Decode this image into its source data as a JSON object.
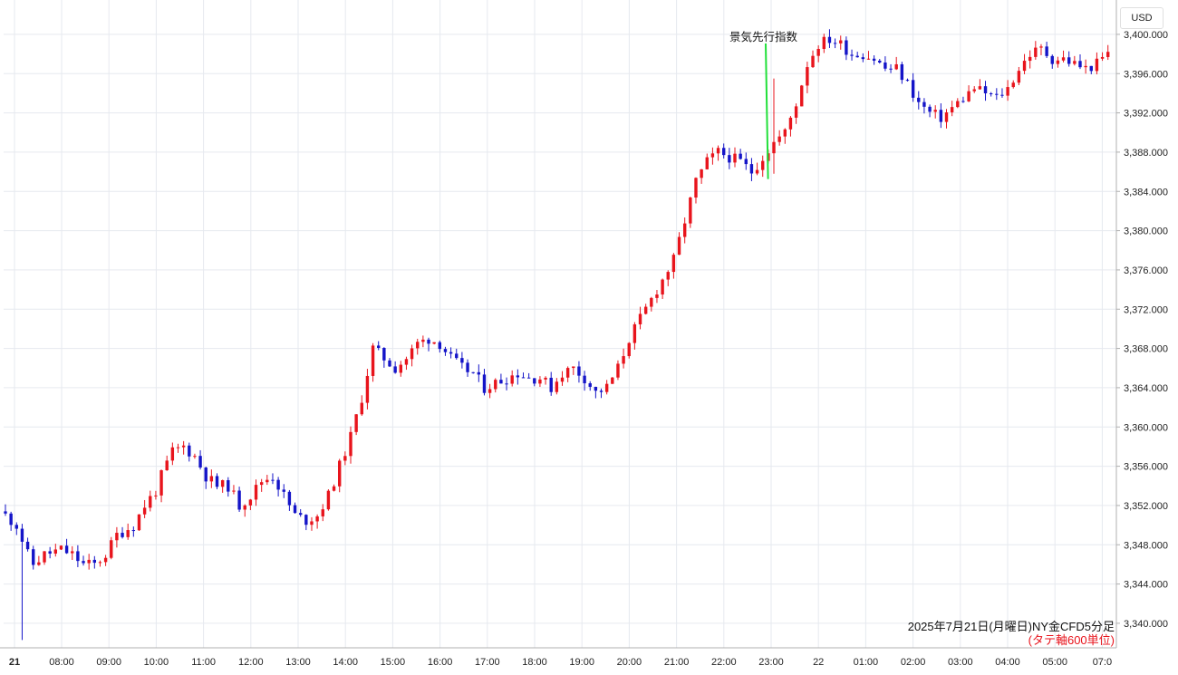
{
  "currency_label": "USD",
  "annotation": {
    "text": "景気先行指数",
    "color": "#22e03a"
  },
  "caption": {
    "line1": "2025年7月21日(月曜日)NY金CFD5分足",
    "line2": "(タテ軸600単位)"
  },
  "colors": {
    "up": "#e8141c",
    "down": "#1414c8",
    "grid": "#e6e9ef",
    "axis": "#b0b0b0"
  },
  "chart_data": {
    "type": "candlestick",
    "x_tick_labels": [
      "21",
      "08:00",
      "09:00",
      "10:00",
      "11:00",
      "12:00",
      "13:00",
      "14:00",
      "15:00",
      "16:00",
      "17:00",
      "18:00",
      "19:00",
      "20:00",
      "21:00",
      "22:00",
      "23:00",
      "22",
      "01:00",
      "02:00",
      "03:00",
      "04:00",
      "05:00",
      "07:0"
    ],
    "y_tick_labels": [
      "3,400.000",
      "3,396.000",
      "3,392.000",
      "3,388.000",
      "3,384.000",
      "3,380.000",
      "3,376.000",
      "3,372.000",
      "3,368.000",
      "3,364.000",
      "3,360.000",
      "3,356.000",
      "3,352.000",
      "3,348.000",
      "3,344.000",
      "3,340.000"
    ],
    "ylim": [
      3337.5,
      3403.5
    ],
    "annotation_time": "22:40",
    "close_path": [
      [
        0,
        3351
      ],
      [
        2,
        3350
      ],
      [
        4,
        3347
      ],
      [
        5,
        3346
      ],
      [
        7,
        3347
      ],
      [
        10,
        3347.5
      ],
      [
        12,
        3347
      ],
      [
        14,
        3346
      ],
      [
        16,
        3346
      ],
      [
        18,
        3347
      ],
      [
        20,
        3349
      ],
      [
        23,
        3350
      ],
      [
        25,
        3352
      ],
      [
        27,
        3353.5
      ],
      [
        28,
        3355
      ],
      [
        30,
        3357.5
      ],
      [
        32,
        3358
      ],
      [
        34,
        3357
      ],
      [
        36,
        3355
      ],
      [
        38,
        3354
      ],
      [
        40,
        3354
      ],
      [
        42,
        3352
      ],
      [
        44,
        3353
      ],
      [
        46,
        3354.5
      ],
      [
        48,
        3355
      ],
      [
        50,
        3353
      ],
      [
        52,
        3351
      ],
      [
        54,
        3350.5
      ],
      [
        56,
        3351
      ],
      [
        58,
        3353
      ],
      [
        60,
        3356
      ],
      [
        62,
        3359
      ],
      [
        64,
        3363
      ],
      [
        66,
        3368
      ],
      [
        68,
        3367
      ],
      [
        70,
        3366
      ],
      [
        72,
        3367
      ],
      [
        74,
        3368.5
      ],
      [
        76,
        3369
      ],
      [
        78,
        3368.5
      ],
      [
        80,
        3367
      ],
      [
        82,
        3366
      ],
      [
        84,
        3365.5
      ],
      [
        86,
        3364
      ],
      [
        88,
        3364.5
      ],
      [
        90,
        3365
      ],
      [
        92,
        3365.5
      ],
      [
        94,
        3365
      ],
      [
        96,
        3365
      ],
      [
        98,
        3364
      ],
      [
        100,
        3365.5
      ],
      [
        102,
        3366
      ],
      [
        104,
        3365
      ],
      [
        106,
        3363.5
      ],
      [
        108,
        3364
      ],
      [
        110,
        3366
      ],
      [
        112,
        3369
      ],
      [
        114,
        3371
      ],
      [
        116,
        3373
      ],
      [
        118,
        3375
      ],
      [
        120,
        3377
      ],
      [
        122,
        3381
      ],
      [
        124,
        3385
      ],
      [
        126,
        3387
      ],
      [
        128,
        3388
      ],
      [
        130,
        3387.5
      ],
      [
        132,
        3387
      ],
      [
        134,
        3386
      ],
      [
        136,
        3387.5
      ],
      [
        138,
        3389
      ],
      [
        140,
        3390
      ],
      [
        142,
        3393
      ],
      [
        144,
        3397
      ],
      [
        146,
        3399
      ],
      [
        148,
        3399.5
      ],
      [
        150,
        3399
      ],
      [
        152,
        3398
      ],
      [
        154,
        3398
      ],
      [
        156,
        3397.5
      ],
      [
        158,
        3396.5
      ],
      [
        160,
        3396.5
      ],
      [
        162,
        3395
      ],
      [
        164,
        3393
      ],
      [
        166,
        3392
      ],
      [
        168,
        3391.5
      ],
      [
        170,
        3392.5
      ],
      [
        172,
        3393.5
      ],
      [
        174,
        3394.5
      ],
      [
        176,
        3394
      ],
      [
        178,
        3393.5
      ],
      [
        180,
        3394.5
      ],
      [
        182,
        3396.5
      ],
      [
        184,
        3398
      ],
      [
        186,
        3398.5
      ],
      [
        188,
        3397.5
      ],
      [
        190,
        3397.5
      ],
      [
        192,
        3397
      ],
      [
        194,
        3396.5
      ],
      [
        196,
        3397
      ],
      [
        198,
        3398
      ]
    ],
    "spikes": [
      {
        "index": 3,
        "low": 3338.3
      },
      {
        "index": 138,
        "high": 3395.5,
        "low": 3385.8
      }
    ]
  }
}
